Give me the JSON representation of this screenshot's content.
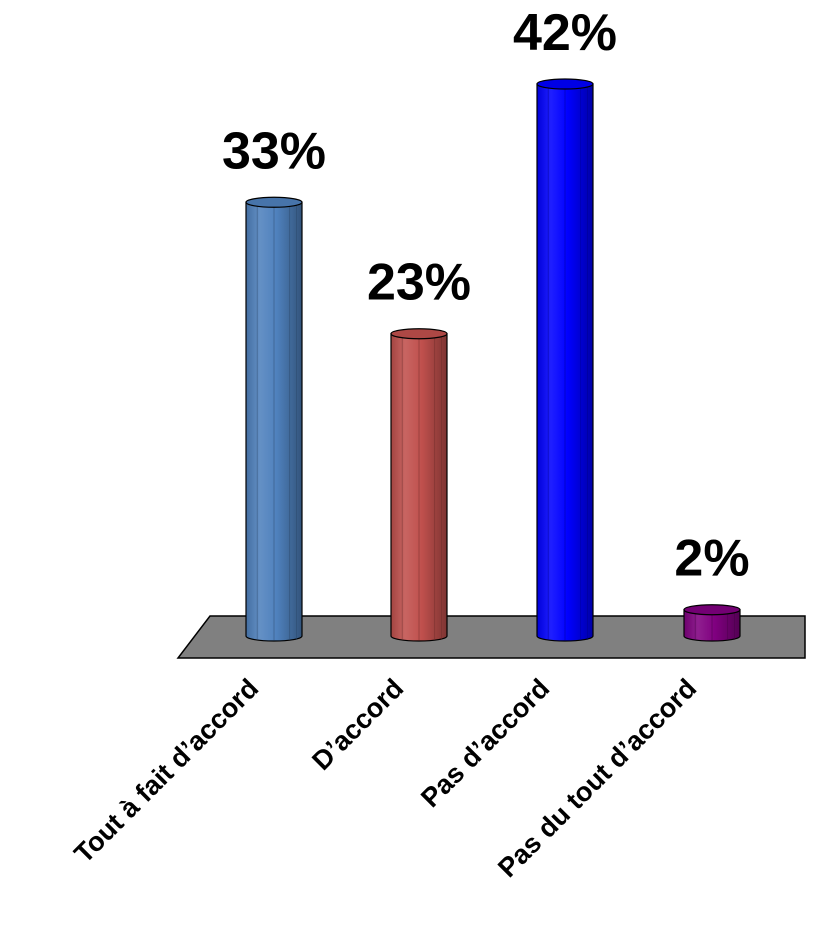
{
  "chart_data": {
    "type": "bar",
    "style": "3d-cylinder",
    "categories": [
      "Tout à fait d’accord",
      "D’accord",
      "Pas d’accord",
      "Pas du tout d’accord"
    ],
    "values": [
      33,
      23,
      42,
      2
    ],
    "value_labels": [
      "33%",
      "23%",
      "42%",
      "2%"
    ],
    "colors": [
      "#4f81bd",
      "#c0504d",
      "#0000ff",
      "#800080"
    ],
    "floor_color": "#808080",
    "unit": "%",
    "ylim": [
      0,
      42
    ],
    "grid": false,
    "legend": "none"
  }
}
